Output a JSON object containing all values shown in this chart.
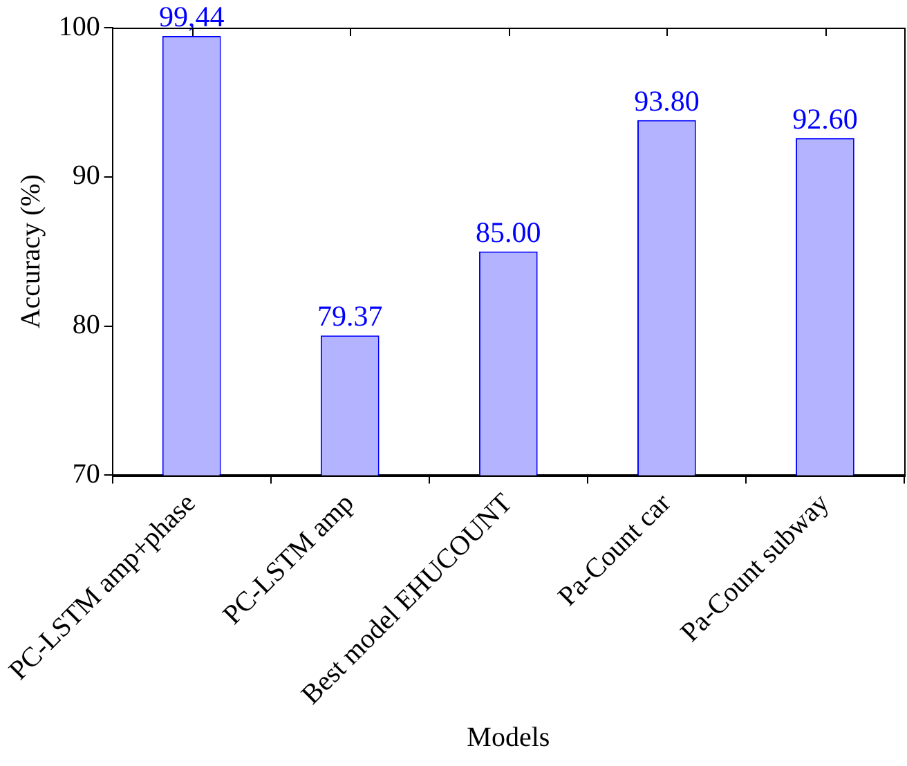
{
  "chart_data": {
    "type": "bar",
    "xlabel": "Models",
    "ylabel": "Accuracy (%)",
    "categories": [
      "PC-LSTM amp+phase",
      "PC-LSTM amp",
      "Best model EHUCOUNT",
      "Pa-Count car",
      "Pa-Count subway"
    ],
    "values": [
      99.44,
      79.37,
      85.0,
      93.8,
      92.6
    ],
    "value_labels": [
      "99,44",
      "79.37",
      "85.00",
      "93.80",
      "92.60"
    ],
    "color": "#b3b3ff",
    "ylim": [
      70,
      100
    ],
    "yticks": [
      70,
      80,
      90,
      100
    ],
    "grid": false,
    "legend": false
  }
}
